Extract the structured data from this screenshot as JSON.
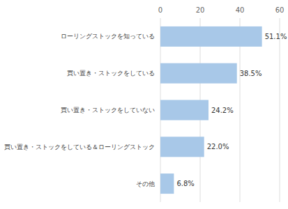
{
  "chart_data": {
    "type": "bar",
    "orientation": "horizontal",
    "categories": [
      "ローリングストックを知っている",
      "買い置き・ストックをしている",
      "買い置き・ストックをしていない",
      "買い置き・ストックをしている＆ローリングストック",
      "その他"
    ],
    "values": [
      51.1,
      38.5,
      24.2,
      22.0,
      6.8
    ],
    "value_labels": [
      "51.1%",
      "38.5%",
      "24.2%",
      "22.0%",
      "6.8%"
    ],
    "data_labels": true,
    "color": "#a8c8e8",
    "xlim": [
      0,
      60
    ],
    "xticks": [
      0,
      20,
      40,
      60
    ],
    "grid": true
  }
}
